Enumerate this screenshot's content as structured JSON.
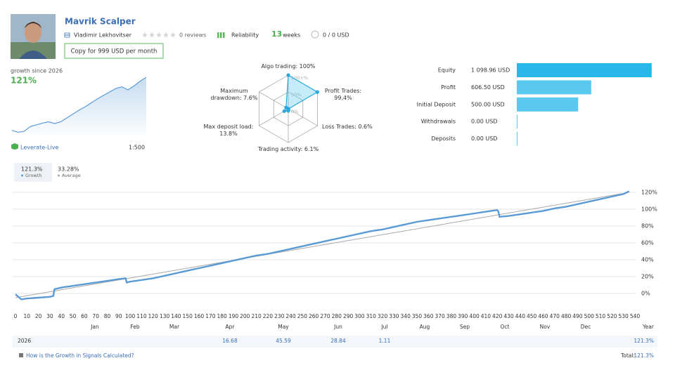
{
  "header": {
    "name": "Mavrik Scalper",
    "author": "Vladimir Lekhovitser",
    "reviews": "0 reviews",
    "reliability": "Reliability",
    "weeks_value": "13",
    "weeks_label": "weeks",
    "subscribers": "0 / 0 USD",
    "copy_button": "Copy for 999 USD per month"
  },
  "summary": {
    "growth_label": "growth since 2026",
    "growth_value": "121%",
    "broker": "Leverate-Live",
    "leverage": "1:500"
  },
  "chart_data": [
    {
      "type": "area",
      "color": "#5b9bd5",
      "ylim": [
        -12,
        126
      ],
      "values": [
        -2,
        -6,
        -4,
        7,
        11,
        15,
        18,
        14,
        18,
        27,
        36,
        45,
        53,
        62,
        71,
        79,
        87,
        95,
        99,
        92,
        101,
        112,
        121
      ]
    },
    {
      "type": "radar",
      "color": "#5bc8f0",
      "categories": [
        "Algo trading: 100%",
        "Profit Trades: 99.4%",
        "Loss Trades: 0.6%",
        "Trading activity: 6.1%",
        "Max deposit load: 13.8%",
        "Maximum drawdown: 7.6%"
      ],
      "values": [
        100,
        99.4,
        0.6,
        6.1,
        13.8,
        7.6
      ],
      "rlim": [
        0,
        100
      ],
      "rticks": [
        {
          "value": 0,
          "label": "0%"
        },
        {
          "value": 50,
          "label": "50%"
        },
        {
          "value": 100,
          "label": "100+%"
        }
      ]
    },
    {
      "type": "hbar",
      "colors": [
        "#29b6e8",
        "#5bc8f0",
        "#5bc8f0",
        "#5bc8f0",
        "#5bc8f0"
      ],
      "xlim": [
        0,
        1100
      ],
      "categories": [
        "Equity",
        "Profit",
        "Initial Deposit",
        "Withdrawals",
        "Deposits"
      ],
      "values": [
        1098.96,
        606.5,
        500,
        0,
        0
      ],
      "value_labels": [
        "1 098.96 USD",
        "606.50 USD",
        "500.00 USD",
        "0.00 USD",
        "0.00 USD"
      ]
    },
    {
      "type": "line",
      "grid": true,
      "xlim": [
        0,
        540
      ],
      "ylim": [
        -12,
        126
      ],
      "xticks": [
        0,
        10,
        20,
        30,
        40,
        50,
        60,
        70,
        80,
        90,
        100,
        110,
        120,
        130,
        140,
        150,
        160,
        170,
        180,
        190,
        200,
        210,
        220,
        230,
        240,
        250,
        260,
        270,
        280,
        290,
        300,
        310,
        320,
        330,
        340,
        350,
        360,
        370,
        380,
        390,
        400,
        410,
        420,
        430,
        440,
        450,
        460,
        470,
        480,
        490,
        500,
        510,
        520,
        530,
        540
      ],
      "yticks": [
        {
          "value": 0,
          "label": "0%"
        },
        {
          "value": 20,
          "label": "20%"
        },
        {
          "value": 40,
          "label": "40%"
        },
        {
          "value": 60,
          "label": "60%"
        },
        {
          "value": 80,
          "label": "80%"
        },
        {
          "value": 100,
          "label": "100%"
        },
        {
          "value": 120,
          "label": "120%"
        }
      ],
      "series": [
        {
          "name": "Growth",
          "summary": "121.3%",
          "color": "#5b9bd5",
          "x": [
            0,
            5,
            10,
            20,
            30,
            33,
            34,
            40,
            50,
            60,
            70,
            80,
            90,
            96,
            97,
            100,
            110,
            120,
            130,
            140,
            150,
            160,
            170,
            180,
            190,
            200,
            210,
            220,
            230,
            240,
            250,
            260,
            270,
            280,
            290,
            300,
            310,
            320,
            330,
            340,
            350,
            360,
            370,
            380,
            390,
            400,
            410,
            420,
            421,
            422,
            430,
            440,
            450,
            460,
            470,
            480,
            490,
            500,
            510,
            520,
            530,
            535
          ],
          "values": [
            -1,
            -7,
            -6,
            -5,
            -4,
            -3,
            5,
            7,
            9,
            11,
            13,
            15,
            17,
            18,
            13,
            14,
            16,
            18,
            21,
            24,
            27,
            30,
            33,
            36,
            39,
            42,
            45,
            47,
            50,
            53,
            56,
            59,
            62,
            65,
            68,
            71,
            74,
            76,
            79,
            82,
            85,
            87,
            89,
            91,
            93,
            95,
            97,
            99,
            97,
            91,
            92,
            94,
            96,
            98,
            101,
            103,
            106,
            109,
            112,
            115,
            118,
            121.3
          ]
        },
        {
          "name": "Average",
          "summary": "33.28%",
          "color": "#a8a8a8",
          "x": [
            0,
            535
          ],
          "values": [
            -5,
            120
          ]
        }
      ]
    }
  ],
  "year_table": {
    "columns": [
      "Jan",
      "Feb",
      "Mar",
      "Apr",
      "May",
      "Jun",
      "Jul",
      "Aug",
      "Sep",
      "Oct",
      "Nov",
      "Dec",
      "Year"
    ],
    "rows": [
      {
        "year": "2026",
        "values": [
          null,
          null,
          null,
          "16.68",
          "45.59",
          "28.84",
          "1.11",
          null,
          null,
          null,
          null,
          null,
          "121.3%"
        ]
      }
    ]
  },
  "footer": {
    "link": "How is the Growth in Signals Calculated?",
    "total_label": "Total:",
    "total_value": "121.3%"
  }
}
